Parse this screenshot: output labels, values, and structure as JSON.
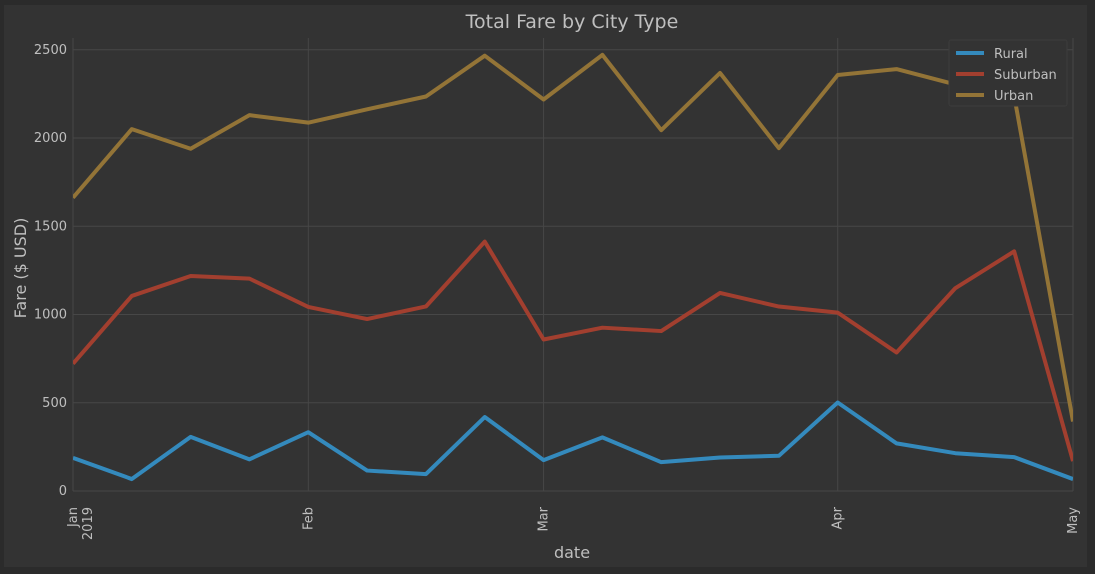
{
  "chart_data": {
    "type": "line",
    "title": "Total Fare by City Type",
    "xlabel": "date",
    "ylabel": "Fare ($ USD)",
    "x": [
      "2019-01-06",
      "2019-01-13",
      "2019-01-20",
      "2019-01-27",
      "2019-02-03",
      "2019-02-10",
      "2019-02-17",
      "2019-02-24",
      "2019-03-03",
      "2019-03-10",
      "2019-03-17",
      "2019-03-24",
      "2019-03-31",
      "2019-04-07",
      "2019-04-14",
      "2019-04-21",
      "2019-04-28",
      "2019-05-05"
    ],
    "xlim": [
      "2019-01-06",
      "2019-05-05"
    ],
    "x_ticks": [
      {
        "date": "2019-01-06",
        "label": "Jan",
        "sublabel": "2019"
      },
      {
        "date": "2019-02-03",
        "label": "Feb",
        "sublabel": ""
      },
      {
        "date": "2019-03-03",
        "label": "Mar",
        "sublabel": ""
      },
      {
        "date": "2019-04-07",
        "label": "Apr",
        "sublabel": ""
      },
      {
        "date": "2019-05-05",
        "label": "May",
        "sublabel": ""
      }
    ],
    "ylim": [
      0,
      2600
    ],
    "y_ticks": [
      0,
      500,
      1000,
      1500,
      2000,
      2500
    ],
    "grid": true,
    "legend_position": "top-right",
    "series": [
      {
        "name": "Rural",
        "color": "#348abd",
        "values": [
          187.92,
          67.65,
          306.54,
          179.5,
          333.08,
          115.8,
          95.82,
          419.06,
          175.14,
          303.94,
          163.39,
          189.76,
          199.42,
          501.24,
          269.79,
          214.14,
          191.85,
          67.6
        ]
      },
      {
        "name": "Suburban",
        "color": "#a23f2f",
        "values": [
          721.6,
          1105.13,
          1218.2,
          1203.28,
          1042.79,
          974.34,
          1045.5,
          1412.74,
          858.46,
          925.27,
          906.2,
          1122.2,
          1045.06,
          1010.73,
          784.82,
          1149.27,
          1357.75,
          169.43
        ]
      },
      {
        "name": "Urban",
        "color": "#937437",
        "values": [
          1661.68,
          2050.43,
          1939.02,
          2129.51,
          2086.94,
          2162.64,
          2235.07,
          2466.29,
          2218.2,
          2470.93,
          2044.42,
          2368.37,
          1942.33,
          2356.7,
          2390.48,
          2303.8,
          2238.29,
          394.01
        ]
      }
    ]
  }
}
